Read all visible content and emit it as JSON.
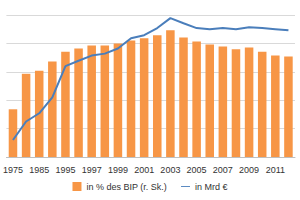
{
  "chart_data": {
    "type": "bar",
    "categories": [
      "1975",
      null,
      "1985",
      null,
      "1995",
      null,
      "1997",
      null,
      "1999",
      null,
      "2001",
      null,
      "2003",
      null,
      "2005",
      null,
      "2007",
      null,
      "2009",
      null,
      "2011",
      null
    ],
    "series": [
      {
        "name": "in % des BIP (r. Sk.)",
        "type": "bar",
        "axis": "y2",
        "color": "#f79646",
        "values": [
          1.68,
          2.93,
          3.04,
          3.36,
          3.71,
          3.82,
          3.93,
          3.93,
          4.0,
          4.1,
          4.18,
          4.29,
          4.46,
          4.21,
          4.07,
          3.96,
          3.89,
          3.79,
          3.86,
          3.71,
          3.57,
          3.54
        ]
      },
      {
        "name": "in Mrd €",
        "type": "line",
        "color": "#4a7ebb",
        "values": [
          0.6,
          1.25,
          1.54,
          2.1,
          3.2,
          3.39,
          3.57,
          3.64,
          3.82,
          4.18,
          4.29,
          4.54,
          4.89,
          4.71,
          4.54,
          4.5,
          4.54,
          4.5,
          4.57,
          4.54,
          4.5,
          4.46
        ]
      }
    ],
    "ylim": [
      0,
      5
    ],
    "yticks": [
      0,
      1,
      2,
      3,
      4,
      5
    ],
    "y2lim": [
      0,
      5
    ],
    "y2ticks": [
      0,
      1,
      2,
      3,
      4,
      5
    ],
    "grid": true,
    "legend": "bottom",
    "tick_labels": "x"
  }
}
